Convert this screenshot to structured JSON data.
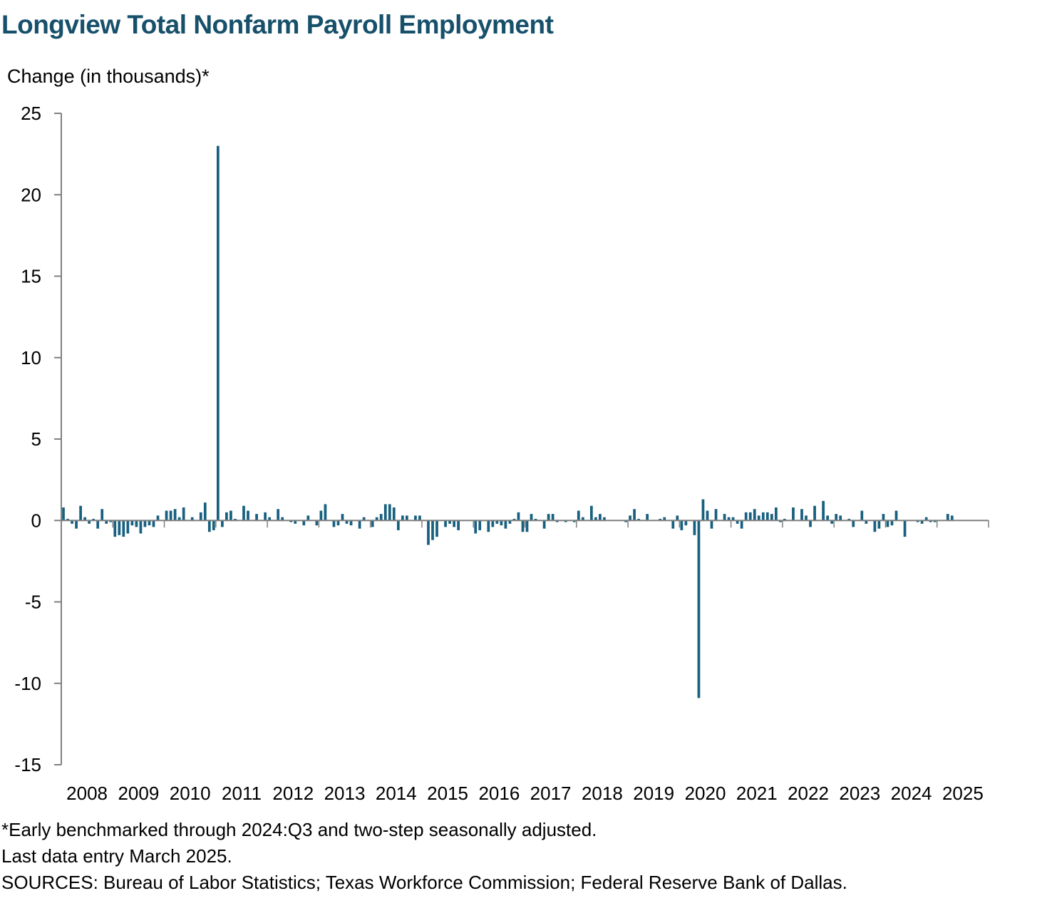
{
  "title": "Longview Total Nonfarm Payroll Employment",
  "ylabel": "Change (in thousands)*",
  "footnotes": [
    "*Early benchmarked through 2024:Q3 and two-step seasonally adjusted.",
    "Last data entry March 2025.",
    "SOURCES: Bureau of Labor Statistics; Texas Workforce Commission; Federal Reserve Bank of Dallas."
  ],
  "colors": {
    "bar": "#17607f",
    "title": "#17506b",
    "axis": "#808080"
  },
  "chart_data": {
    "type": "bar",
    "title": "Longview Total Nonfarm Payroll Employment",
    "xlabel": "",
    "ylabel": "Change (in thousands)*",
    "ylim": [
      -15,
      25
    ],
    "yticks": [
      25,
      20,
      15,
      10,
      5,
      0,
      -5,
      -10,
      -15
    ],
    "year_labels": [
      "2008",
      "2009",
      "2010",
      "2011",
      "2012",
      "2013",
      "2014",
      "2015",
      "2016",
      "2017",
      "2018",
      "2019",
      "2020",
      "2021",
      "2022",
      "2023",
      "2024",
      "2025"
    ],
    "start": "2008-01",
    "end": "2025-03",
    "grid": false,
    "legend": "none",
    "series": [
      {
        "values": [
          0.8,
          0.1,
          -0.2,
          -0.5,
          0.9,
          0.2,
          -0.2,
          0.1,
          -0.5,
          0.7,
          -0.2,
          -0.1,
          -1.0,
          -0.9,
          -1.0,
          -0.8,
          -0.3,
          -0.4,
          -0.8,
          -0.4,
          -0.3,
          -0.4,
          0.3,
          0.0,
          0.6,
          0.6,
          0.7,
          0.2,
          0.8,
          0.0,
          0.2,
          0.0,
          0.5,
          1.1,
          -0.7,
          -0.6,
          23.0,
          -0.4,
          0.5,
          0.6,
          0.1,
          0.0,
          0.9,
          0.6,
          0.0,
          0.4,
          0.0,
          0.5,
          0.2,
          0.0,
          0.7,
          0.2,
          0.0,
          -0.1,
          -0.2,
          0.0,
          -0.3,
          0.3,
          0.0,
          -0.3,
          0.6,
          1.0,
          0.0,
          -0.4,
          -0.3,
          0.4,
          -0.2,
          -0.3,
          0.0,
          -0.5,
          0.2,
          0.0,
          -0.4,
          0.2,
          0.4,
          1.0,
          1.0,
          0.8,
          -0.6,
          0.3,
          0.3,
          0.0,
          0.3,
          0.3,
          0.0,
          -1.5,
          -1.2,
          -1.0,
          0.0,
          -0.4,
          -0.2,
          -0.4,
          -0.6,
          0.0,
          0.0,
          0.0,
          -0.8,
          -0.6,
          0.0,
          -0.7,
          -0.4,
          -0.2,
          -0.3,
          -0.5,
          -0.2,
          0.1,
          0.5,
          -0.7,
          -0.7,
          0.4,
          0.1,
          0.0,
          -0.5,
          0.4,
          0.4,
          -0.1,
          0.0,
          -0.1,
          0.0,
          -0.1,
          0.6,
          0.2,
          0.0,
          0.9,
          0.2,
          0.4,
          0.2,
          0.0,
          0.0,
          0.0,
          0.0,
          -0.1,
          0.3,
          0.7,
          0.1,
          0.0,
          0.4,
          0.0,
          0.0,
          0.1,
          0.2,
          0.0,
          -0.5,
          0.3,
          -0.6,
          -0.3,
          0.0,
          -0.9,
          -10.9,
          1.3,
          0.6,
          -0.5,
          0.7,
          0.0,
          0.4,
          0.2,
          0.2,
          -0.2,
          -0.5,
          0.5,
          0.5,
          0.7,
          0.3,
          0.5,
          0.5,
          0.4,
          0.8,
          -0.1,
          0.1,
          0.0,
          0.8,
          0.0,
          0.7,
          0.3,
          -0.4,
          0.9,
          0.0,
          1.2,
          0.3,
          -0.2,
          0.4,
          0.3,
          0.0,
          0.1,
          -0.4,
          0.0,
          0.6,
          -0.2,
          0.0,
          -0.7,
          -0.5,
          0.4,
          -0.4,
          -0.3,
          0.6,
          0.0,
          -1.0,
          0.0,
          0.0,
          -0.1,
          -0.2,
          0.2,
          -0.1,
          -0.1,
          0.0,
          0.0,
          0.4,
          0.3,
          0.0
        ]
      }
    ]
  }
}
